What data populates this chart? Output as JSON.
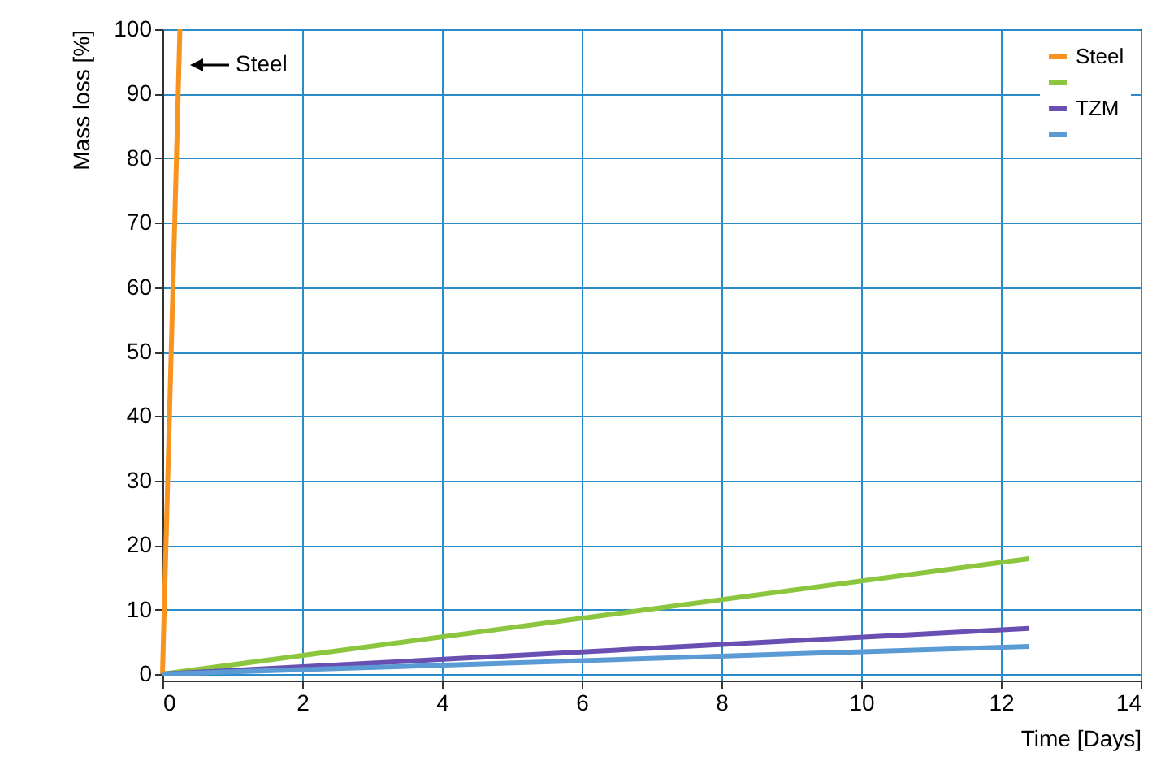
{
  "chart_data": {
    "type": "line",
    "xlabel": "Time [Days]",
    "ylabel": "Mass loss [%]",
    "xlim": [
      0,
      14
    ],
    "xticks": [
      0,
      2,
      4,
      6,
      8,
      10,
      12,
      14
    ],
    "ylim": [
      -1,
      100
    ],
    "yticks": [
      0,
      10,
      20,
      30,
      40,
      50,
      60,
      70,
      80,
      90,
      100
    ],
    "grid": true,
    "legend": "top right",
    "series": [
      {
        "name": "Steel",
        "color": "#f7931e",
        "x": [
          0,
          0.25
        ],
        "values": [
          0,
          100
        ]
      },
      {
        "color": "#8cc63f",
        "x": [
          0,
          12.4
        ],
        "values": [
          0,
          17.9
        ]
      },
      {
        "name": "TZM",
        "color": "#6a4fb3",
        "x": [
          0,
          12.4
        ],
        "values": [
          0,
          7.1
        ]
      },
      {
        "color": "#5b9bd5",
        "x": [
          0,
          12.4
        ],
        "values": [
          0,
          4.3
        ]
      }
    ],
    "annotations": [
      "Steel"
    ]
  }
}
